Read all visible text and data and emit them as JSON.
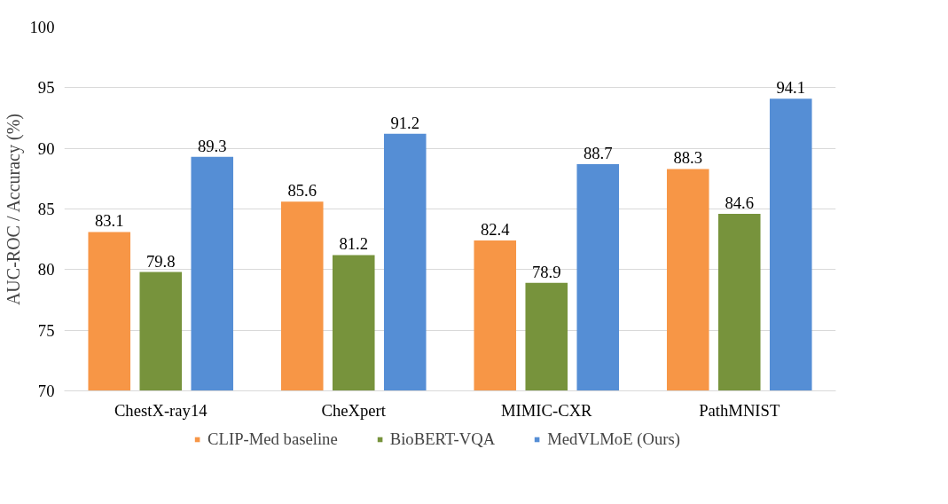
{
  "chart_data": {
    "type": "bar",
    "ylabel": "AUC-ROC / Accuracy (%)",
    "categories": [
      "ChestX-ray14",
      "CheXpert",
      "MIMIC-CXR",
      "PathMNIST"
    ],
    "series": [
      {
        "name": "CLIP-Med baseline",
        "color": "#f79646",
        "values": [
          83.1,
          85.6,
          82.4,
          88.3
        ]
      },
      {
        "name": "BioBERT-VQA",
        "color": "#77933c",
        "values": [
          79.8,
          81.2,
          78.9,
          84.6
        ]
      },
      {
        "name": "MedVLMoE (Ours)",
        "color": "#558ed5",
        "values": [
          89.3,
          91.2,
          88.7,
          94.1
        ]
      }
    ],
    "ylim": [
      70,
      100
    ],
    "yticks": [
      70,
      75,
      80,
      85,
      90,
      95,
      100
    ],
    "grid": "y",
    "legend": "bottom",
    "data_labels": true
  }
}
